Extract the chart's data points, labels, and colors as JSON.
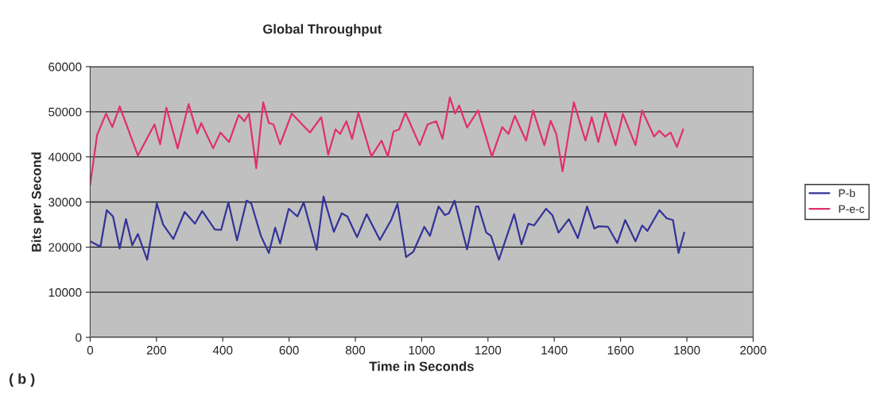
{
  "chart_data": {
    "type": "line",
    "title": "Global Throughput",
    "xlabel": "Time in Seconds",
    "ylabel": "Bits per Second",
    "xlim": [
      0,
      2000
    ],
    "xticks": [
      0,
      200,
      400,
      600,
      800,
      1000,
      1200,
      1400,
      1600,
      1800,
      2000
    ],
    "ylim": [
      0,
      60000
    ],
    "yticks": [
      0,
      10000,
      20000,
      30000,
      40000,
      50000,
      60000
    ],
    "grid": "y",
    "legend": "right",
    "marker": "none",
    "line_style": "solid",
    "annotations": [
      "( b )"
    ],
    "series": [
      {
        "name": "P-b",
        "color": "#333399",
        "x": [
          0,
          31,
          50,
          69,
          89,
          108,
          127,
          144,
          172,
          201,
          220,
          251,
          285,
          316,
          338,
          376,
          395,
          417,
          443,
          472,
          486,
          515,
          539,
          558,
          573,
          599,
          625,
          644,
          683,
          704,
          735,
          759,
          776,
          805,
          834,
          874,
          908,
          927,
          953,
          975,
          1008,
          1025,
          1051,
          1070,
          1082,
          1099,
          1137,
          1164,
          1171,
          1195,
          1209,
          1233,
          1279,
          1301,
          1322,
          1339,
          1375,
          1394,
          1413,
          1444,
          1471,
          1499,
          1521,
          1533,
          1562,
          1590,
          1614,
          1645,
          1665,
          1681,
          1717,
          1739,
          1758,
          1775,
          1792
        ],
        "values": [
          21300,
          20100,
          28200,
          26800,
          19700,
          26200,
          20400,
          22900,
          17200,
          29700,
          25000,
          21800,
          27800,
          25200,
          28000,
          23900,
          23800,
          29900,
          21500,
          30300,
          29700,
          22500,
          18700,
          24300,
          20800,
          28500,
          26800,
          29900,
          19400,
          31200,
          23400,
          27500,
          26800,
          22200,
          27300,
          21600,
          26000,
          29600,
          17800,
          19000,
          24500,
          22500,
          29000,
          27100,
          27500,
          30300,
          19500,
          29000,
          29000,
          23200,
          22500,
          17200,
          27300,
          20600,
          25200,
          24800,
          28500,
          27100,
          23200,
          26200,
          22000,
          29000,
          24100,
          24600,
          24500,
          20900,
          26000,
          21300,
          24800,
          23600,
          28200,
          26400,
          26000,
          18700,
          23200
        ]
      },
      {
        "name": "P-e-c",
        "color": "#e0306a",
        "x": [
          0,
          21,
          48,
          67,
          89,
          144,
          194,
          211,
          230,
          264,
          297,
          323,
          335,
          371,
          393,
          419,
          448,
          465,
          479,
          501,
          522,
          539,
          553,
          573,
          608,
          663,
          697,
          718,
          740,
          754,
          773,
          790,
          809,
          848,
          879,
          898,
          915,
          932,
          951,
          994,
          1018,
          1044,
          1063,
          1085,
          1101,
          1113,
          1137,
          1170,
          1212,
          1243,
          1262,
          1281,
          1315,
          1336,
          1370,
          1389,
          1406,
          1425,
          1459,
          1494,
          1513,
          1533,
          1554,
          1585,
          1607,
          1645,
          1665,
          1701,
          1717,
          1734,
          1751,
          1770,
          1789
        ],
        "values": [
          33800,
          44900,
          49600,
          46600,
          51200,
          40300,
          47200,
          42800,
          50900,
          41900,
          51700,
          45200,
          47500,
          41900,
          45400,
          43300,
          49300,
          47900,
          49600,
          37500,
          52100,
          47500,
          47200,
          42800,
          49600,
          45400,
          48800,
          40500,
          46100,
          45100,
          47900,
          44000,
          49800,
          40100,
          43600,
          40100,
          45600,
          46100,
          49800,
          42600,
          47200,
          47900,
          44000,
          53200,
          49600,
          51400,
          46500,
          50300,
          40100,
          46600,
          45100,
          49100,
          43600,
          50300,
          42600,
          48000,
          45100,
          36800,
          52100,
          43600,
          48800,
          43300,
          49800,
          42600,
          49500,
          42600,
          50300,
          44500,
          45800,
          44500,
          45400,
          42200,
          46100
        ]
      }
    ]
  }
}
